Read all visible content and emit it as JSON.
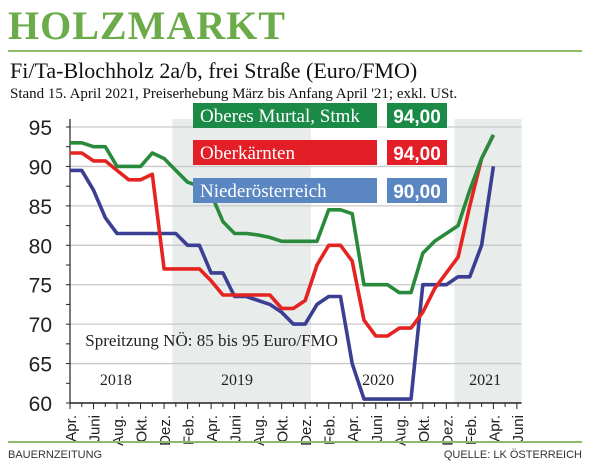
{
  "header": {
    "title": "HOLZMARKT",
    "subtitle": "Fi/Ta-Blochholz 2a/b, frei Straße (Euro/FMO)",
    "note": "Stand 15. April 2021, Preiserhebung März bis Anfang April '21; exkl. USt."
  },
  "footer": {
    "left": "BAUERNZEITUNG",
    "right": "QUELLE: LK ÖSTERREICH"
  },
  "chart_data": {
    "type": "line",
    "title": "",
    "ylim": [
      60,
      95
    ],
    "yticks": [
      60,
      65,
      70,
      75,
      80,
      85,
      90,
      95
    ],
    "grid": true,
    "x_start": "2018-04",
    "x_tick_labels": [
      "Apr.",
      "Juni",
      "Aug.",
      "Okt.",
      "Dez.",
      "Feb.",
      "Apr.",
      "Juni",
      "Aug.",
      "Okt.",
      "Dez.",
      "Feb.",
      "Apr.",
      "Juni",
      "Aug.",
      "Okt.",
      "Dez.",
      "Feb.",
      "Apr.",
      "Juni"
    ],
    "year_labels": [
      "2018",
      "2019",
      "2020",
      "2021"
    ],
    "annotation": "Spreitzung NÖ: 85 bis 95 Euro/FMO",
    "x": [
      "2018-04",
      "2018-05",
      "2018-06",
      "2018-07",
      "2018-08",
      "2018-09",
      "2018-10",
      "2018-11",
      "2018-12",
      "2019-01",
      "2019-02",
      "2019-03",
      "2019-04",
      "2019-05",
      "2019-06",
      "2019-07",
      "2019-08",
      "2019-09",
      "2019-10",
      "2019-11",
      "2019-12",
      "2020-01",
      "2020-02",
      "2020-03",
      "2020-04",
      "2020-05",
      "2020-06",
      "2020-07",
      "2020-08",
      "2020-09",
      "2020-10",
      "2020-11",
      "2020-12",
      "2021-01",
      "2021-02",
      "2021-03",
      "2021-04"
    ],
    "series": [
      {
        "name": "Oberes Murtal, Stmk",
        "latest": "94,00",
        "color": "#2a8a3c",
        "box_color": "#1b8a47",
        "values": [
          93,
          93,
          92.5,
          92.5,
          90,
          90,
          90,
          91.7,
          91,
          89.5,
          88,
          87.5,
          86.5,
          83,
          81.5,
          81.5,
          81.3,
          81,
          80.5,
          80.5,
          80.5,
          80.5,
          84.5,
          84.5,
          84,
          75,
          75,
          75,
          74,
          74,
          79,
          80.5,
          81.5,
          82.5,
          87,
          91,
          94
        ]
      },
      {
        "name": "Oberkärnten",
        "latest": "94,00",
        "color": "#e52421",
        "box_color": "#e31e26",
        "values": [
          91.7,
          91.7,
          90.7,
          90.7,
          89.5,
          88.3,
          88.3,
          89,
          77,
          77,
          77,
          77,
          75.5,
          73.7,
          73.7,
          73.7,
          73.7,
          73.7,
          72,
          72,
          73,
          77.5,
          80,
          80,
          78,
          70.5,
          68.5,
          68.5,
          69.5,
          69.5,
          71.5,
          74.5,
          76.5,
          78.5,
          85,
          91,
          94
        ]
      },
      {
        "name": "Niederösterreich",
        "latest": "90,00",
        "color": "#3b3f94",
        "box_color": "#5a87c2",
        "values": [
          89.5,
          89.5,
          87,
          83.5,
          81.5,
          81.5,
          81.5,
          81.5,
          81.5,
          81.5,
          80,
          80,
          76.5,
          76.5,
          73.5,
          73.5,
          73,
          72.5,
          71.5,
          70,
          70,
          72.5,
          73.5,
          73.5,
          65,
          60.5,
          60.5,
          60.5,
          60.5,
          60.5,
          75,
          75,
          75,
          76,
          76,
          80,
          90
        ]
      }
    ]
  }
}
